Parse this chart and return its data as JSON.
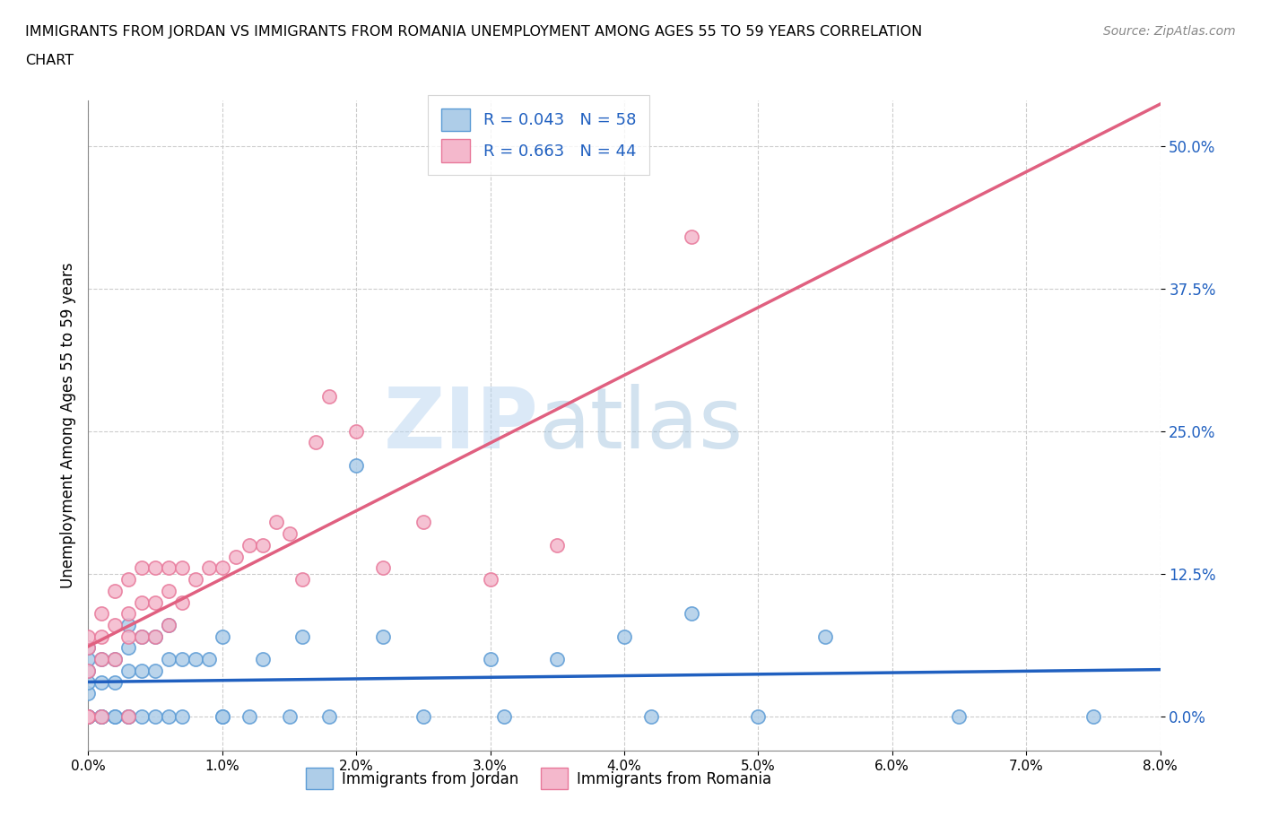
{
  "title_line1": "IMMIGRANTS FROM JORDAN VS IMMIGRANTS FROM ROMANIA UNEMPLOYMENT AMONG AGES 55 TO 59 YEARS CORRELATION",
  "title_line2": "CHART",
  "source_text": "Source: ZipAtlas.com",
  "ylabel": "Unemployment Among Ages 55 to 59 years",
  "xlim": [
    0.0,
    0.08
  ],
  "ylim": [
    -0.03,
    0.54
  ],
  "yticks": [
    0.0,
    0.125,
    0.25,
    0.375,
    0.5
  ],
  "ytick_labels": [
    "0.0%",
    "12.5%",
    "25.0%",
    "37.5%",
    "50.0%"
  ],
  "xticks": [
    0.0,
    0.01,
    0.02,
    0.03,
    0.04,
    0.05,
    0.06,
    0.07,
    0.08
  ],
  "xtick_labels": [
    "0.0%",
    "1.0%",
    "2.0%",
    "3.0%",
    "4.0%",
    "5.0%",
    "6.0%",
    "7.0%",
    "8.0%"
  ],
  "jordan_scatter_color": "#aecde8",
  "jordan_edge_color": "#5b9bd5",
  "romania_scatter_color": "#f4b8cc",
  "romania_edge_color": "#e8789a",
  "jordan_line_color": "#2060c0",
  "romania_line_color": "#e06080",
  "R_jordan": 0.043,
  "N_jordan": 58,
  "R_romania": 0.663,
  "N_romania": 44,
  "watermark_zip": "ZIP",
  "watermark_atlas": "atlas",
  "legend_jordan": "Immigrants from Jordan",
  "legend_romania": "Immigrants from Romania",
  "jordan_x": [
    0.0,
    0.0,
    0.0,
    0.0,
    0.0,
    0.0,
    0.0,
    0.0,
    0.0,
    0.0,
    0.001,
    0.001,
    0.001,
    0.001,
    0.001,
    0.002,
    0.002,
    0.002,
    0.002,
    0.003,
    0.003,
    0.003,
    0.003,
    0.003,
    0.004,
    0.004,
    0.004,
    0.005,
    0.005,
    0.005,
    0.006,
    0.006,
    0.006,
    0.007,
    0.007,
    0.008,
    0.009,
    0.01,
    0.01,
    0.01,
    0.012,
    0.013,
    0.015,
    0.016,
    0.018,
    0.02,
    0.022,
    0.025,
    0.03,
    0.031,
    0.035,
    0.04,
    0.042,
    0.045,
    0.05,
    0.055,
    0.065,
    0.075
  ],
  "jordan_y": [
    0.0,
    0.0,
    0.0,
    0.0,
    0.0,
    0.02,
    0.03,
    0.04,
    0.05,
    0.06,
    0.0,
    0.0,
    0.0,
    0.03,
    0.05,
    0.0,
    0.0,
    0.03,
    0.05,
    0.0,
    0.0,
    0.04,
    0.06,
    0.08,
    0.0,
    0.04,
    0.07,
    0.0,
    0.04,
    0.07,
    0.0,
    0.05,
    0.08,
    0.0,
    0.05,
    0.05,
    0.05,
    0.0,
    0.0,
    0.07,
    0.0,
    0.05,
    0.0,
    0.07,
    0.0,
    0.22,
    0.07,
    0.0,
    0.05,
    0.0,
    0.05,
    0.07,
    0.0,
    0.09,
    0.0,
    0.07,
    0.0,
    0.0
  ],
  "romania_x": [
    0.0,
    0.0,
    0.0,
    0.0,
    0.0,
    0.001,
    0.001,
    0.001,
    0.001,
    0.002,
    0.002,
    0.002,
    0.003,
    0.003,
    0.003,
    0.003,
    0.004,
    0.004,
    0.004,
    0.005,
    0.005,
    0.005,
    0.006,
    0.006,
    0.006,
    0.007,
    0.007,
    0.008,
    0.009,
    0.01,
    0.011,
    0.012,
    0.013,
    0.014,
    0.015,
    0.016,
    0.017,
    0.018,
    0.02,
    0.022,
    0.025,
    0.03,
    0.035,
    0.045
  ],
  "romania_y": [
    0.0,
    0.0,
    0.04,
    0.06,
    0.07,
    0.0,
    0.05,
    0.07,
    0.09,
    0.05,
    0.08,
    0.11,
    0.0,
    0.07,
    0.09,
    0.12,
    0.07,
    0.1,
    0.13,
    0.07,
    0.1,
    0.13,
    0.08,
    0.11,
    0.13,
    0.1,
    0.13,
    0.12,
    0.13,
    0.13,
    0.14,
    0.15,
    0.15,
    0.17,
    0.16,
    0.12,
    0.24,
    0.28,
    0.25,
    0.13,
    0.17,
    0.12,
    0.15,
    0.42
  ]
}
